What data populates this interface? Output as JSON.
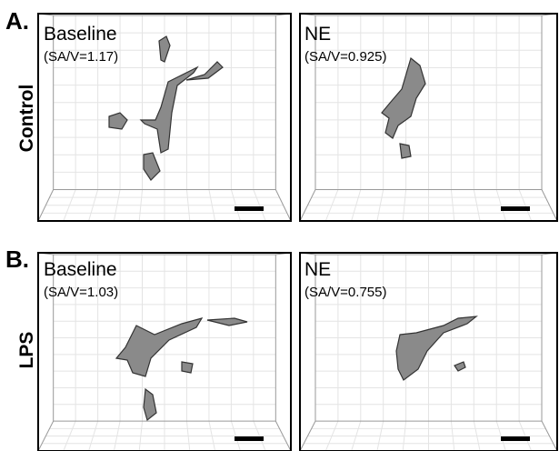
{
  "panels": [
    {
      "label": "A.",
      "condition": "Control",
      "images": [
        {
          "title": "Baseline",
          "ratio": "(SA/V=1.17)"
        },
        {
          "title": "NE",
          "ratio": "(SA/V=0.925)"
        }
      ]
    },
    {
      "label": "B.",
      "condition": "LPS",
      "images": [
        {
          "title": "Baseline",
          "ratio": "(SA/V=1.03)"
        },
        {
          "title": "NE",
          "ratio": "(SA/V=0.755)"
        }
      ]
    }
  ]
}
